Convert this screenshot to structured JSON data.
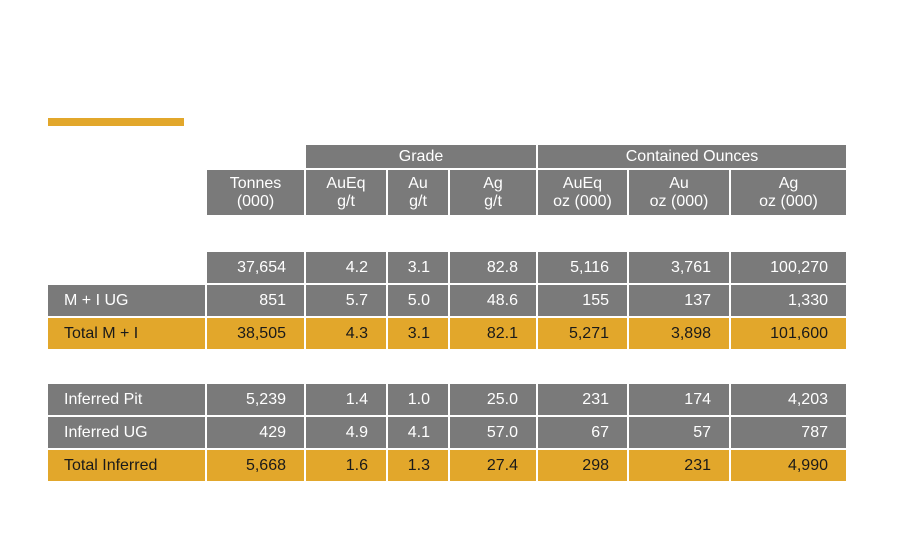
{
  "colors": {
    "header_gray": "#7a7a7a",
    "row_gray": "#7a7a7a",
    "accent_gold": "#e2a72b"
  },
  "header": {
    "group_grade": "Grade",
    "group_contained": "Contained Ounces",
    "columns": [
      {
        "line1": "Tonnes",
        "line2": "(000)"
      },
      {
        "line1": "AuEq",
        "line2": "g/t"
      },
      {
        "line1": "Au",
        "line2": "g/t"
      },
      {
        "line1": "Ag",
        "line2": "g/t"
      },
      {
        "line1": "AuEq",
        "line2": "oz (000)"
      },
      {
        "line1": "Au",
        "line2": "oz (000)"
      },
      {
        "line1": "Ag",
        "line2": "oz (000)"
      }
    ]
  },
  "rows": [
    {
      "label": "",
      "values": [
        "37,654",
        "4.2",
        "3.1",
        "82.8",
        "5,116",
        "3,761",
        "100,270"
      ],
      "style": "gray"
    },
    {
      "label": "M + I UG",
      "values": [
        "851",
        "5.7",
        "5.0",
        "48.6",
        "155",
        "137",
        "1,330"
      ],
      "style": "gray"
    },
    {
      "label": "Total M + I",
      "values": [
        "38,505",
        "4.3",
        "3.1",
        "82.1",
        "5,271",
        "3,898",
        "101,600"
      ],
      "style": "gold"
    },
    {
      "label": "Inferred Pit",
      "values": [
        "5,239",
        "1.4",
        "1.0",
        "25.0",
        "231",
        "174",
        "4,203"
      ],
      "style": "gray"
    },
    {
      "label": "Inferred UG",
      "values": [
        "429",
        "4.9",
        "4.1",
        "57.0",
        "67",
        "57",
        "787"
      ],
      "style": "gray"
    },
    {
      "label": "Total Inferred",
      "values": [
        "5,668",
        "1.6",
        "1.3",
        "27.4",
        "298",
        "231",
        "4,990"
      ],
      "style": "gold"
    }
  ]
}
